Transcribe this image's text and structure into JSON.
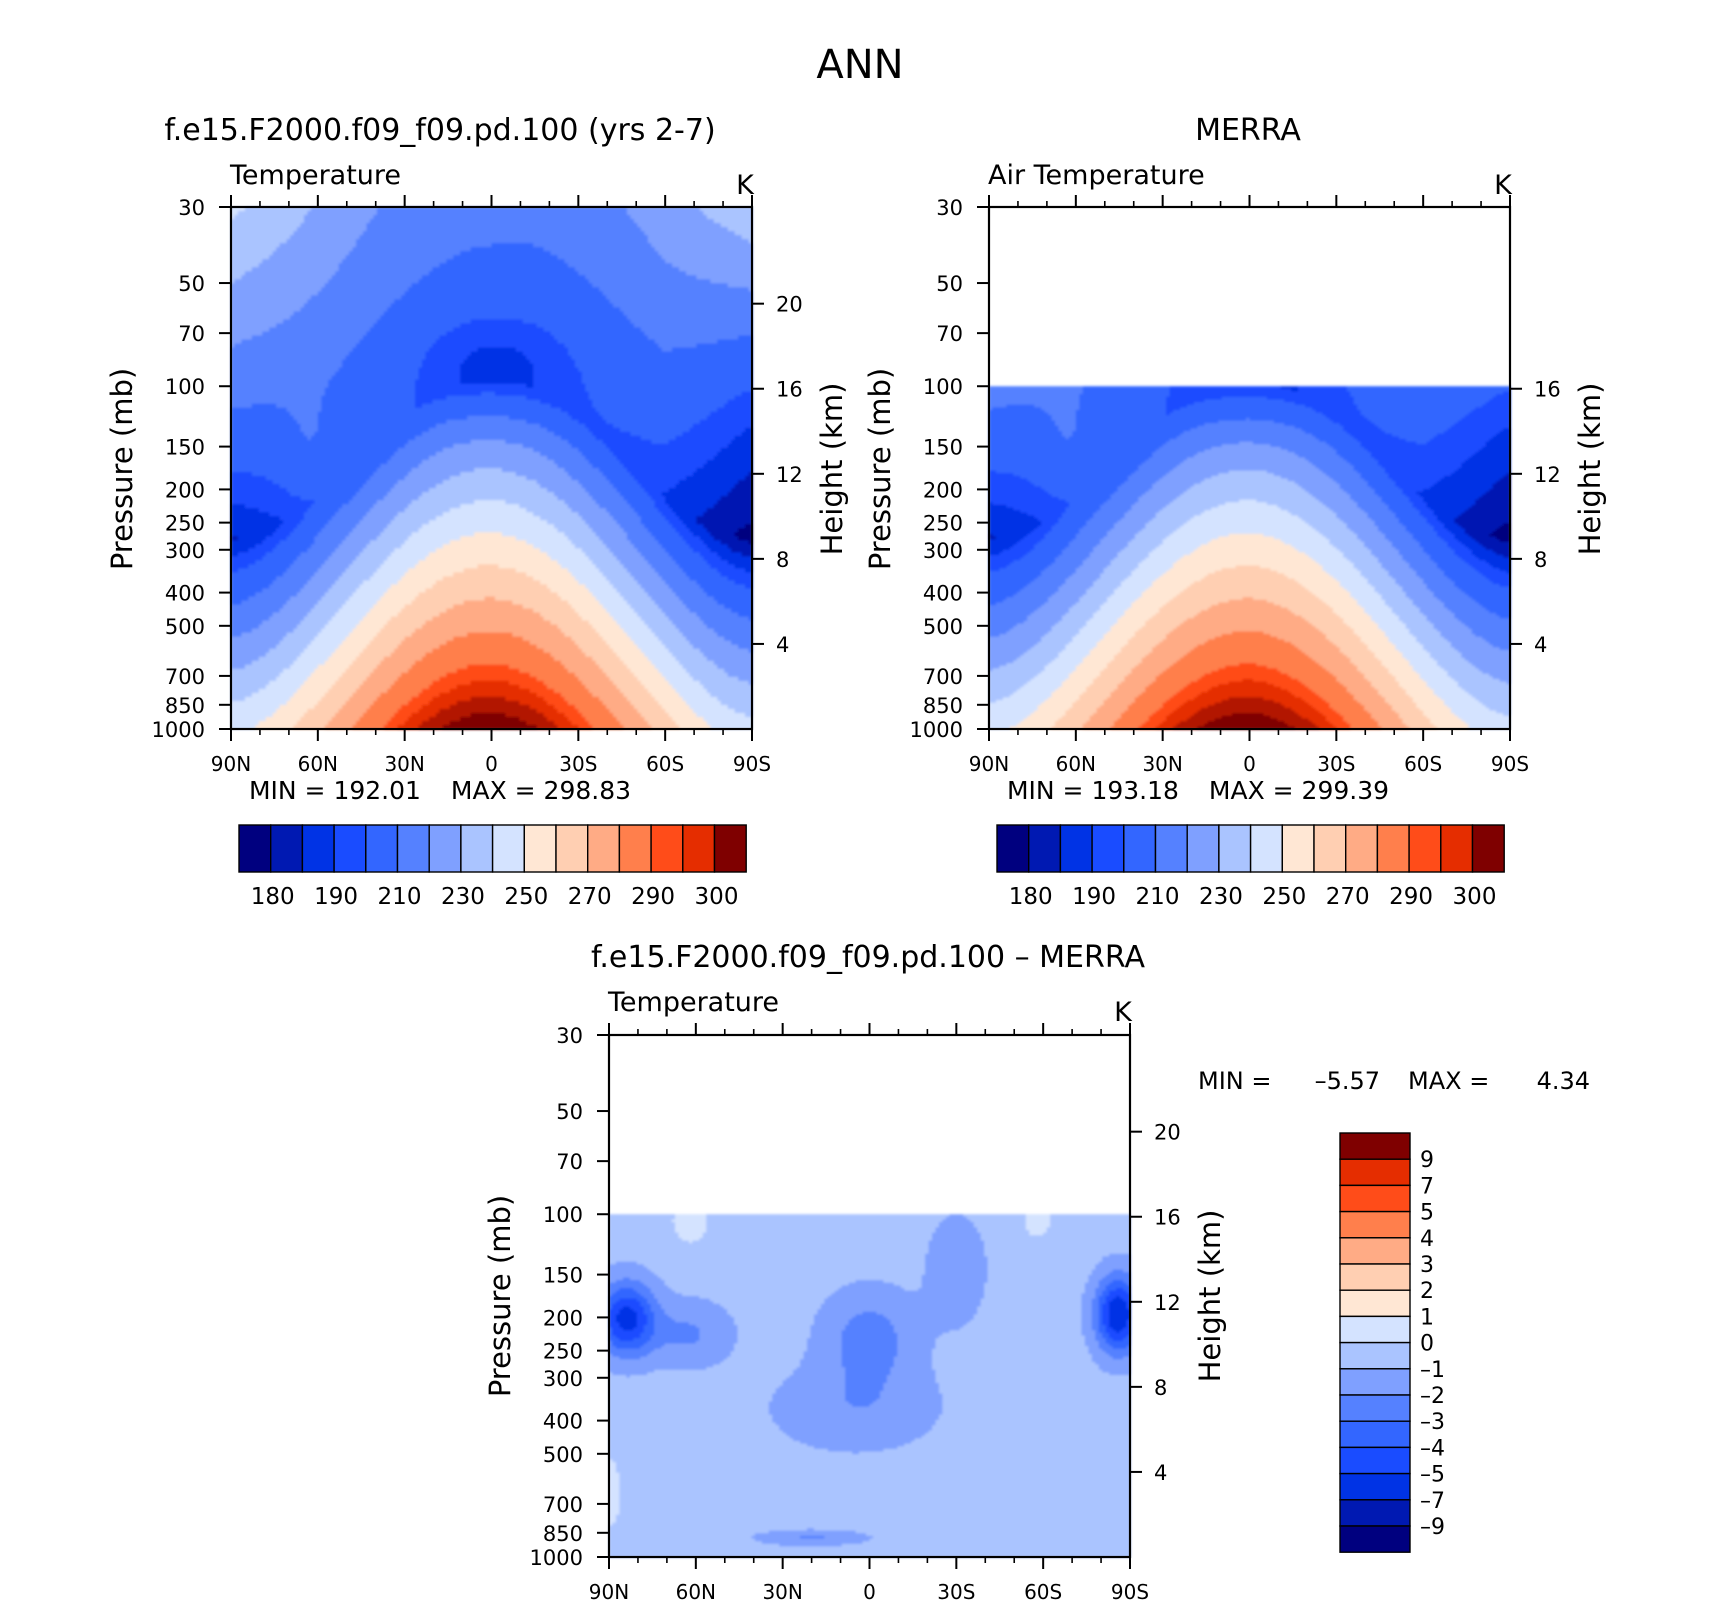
{
  "figure": {
    "title": "ANN"
  },
  "shared": {
    "lat_ticks": [
      "90N",
      "60N",
      "30N",
      "0",
      "30S",
      "60S",
      "90S"
    ],
    "pressure_ticks": [
      30,
      50,
      70,
      100,
      150,
      200,
      250,
      300,
      400,
      500,
      700,
      850,
      1000
    ],
    "pressure_label": "Pressure (mb)",
    "height_label": "Height (km)",
    "units": "K"
  },
  "colors": {
    "abs_fills": [
      "#00007f",
      "#0019b2",
      "#0033e5",
      "#1a4cff",
      "#3366ff",
      "#5581ff",
      "#7fa0ff",
      "#aac4ff",
      "#d4e3ff",
      "#ffe7d4",
      "#ffcfb2",
      "#ffab85",
      "#ff7f4c",
      "#ff4c19",
      "#e52d00",
      "#b21900",
      "#7f0000"
    ],
    "diff_fills": [
      "#00007f",
      "#0019b2",
      "#0033e5",
      "#1a4cff",
      "#3366ff",
      "#5581ff",
      "#7fa0ff",
      "#aac4ff",
      "#d4e3ff",
      "#ffe7d4",
      "#ffcfb2",
      "#ffab85",
      "#ff7f4c",
      "#ff4c19",
      "#e52d00",
      "#b21900",
      "#7f0000"
    ]
  },
  "chart_data": [
    {
      "type": "heatmap",
      "id": "model",
      "title": "f.e15.F2000.f09_f09.pd.100 (yrs 2-7)",
      "left_label": "Temperature",
      "units": "K",
      "x": [
        "90N",
        "60N",
        "30N",
        "0",
        "30S",
        "60S",
        "90S"
      ],
      "xlim": [
        -90,
        90
      ],
      "ylim": [
        1000,
        30
      ],
      "yscale": "log",
      "height_ticks_km": [
        4,
        8,
        12,
        16,
        20
      ],
      "min_label": "MIN = 192.01",
      "max_label": "MAX = 298.83",
      "min": 192.01,
      "max": 298.83,
      "colorbar_labels": [
        "180",
        "190",
        "210",
        "230",
        "250",
        "270",
        "290",
        "300"
      ],
      "levels": [
        175,
        180,
        185,
        190,
        200,
        210,
        220,
        230,
        240,
        250,
        260,
        270,
        280,
        285,
        290,
        295,
        300
      ]
    },
    {
      "type": "heatmap",
      "id": "obs",
      "title": "MERRA",
      "left_label": "Air Temperature",
      "units": "K",
      "x": [
        "90N",
        "60N",
        "30N",
        "0",
        "30S",
        "60S",
        "90S"
      ],
      "xlim": [
        -90,
        90
      ],
      "ylim": [
        1000,
        30
      ],
      "yscale": "log",
      "data_top_mb": 100,
      "height_ticks_km": [
        4,
        8,
        12,
        16
      ],
      "min_label": "MIN = 193.18",
      "max_label": "MAX = 299.39",
      "min": 193.18,
      "max": 299.39,
      "colorbar_labels": [
        "180",
        "190",
        "210",
        "230",
        "250",
        "270",
        "290",
        "300"
      ],
      "levels": [
        175,
        180,
        185,
        190,
        200,
        210,
        220,
        230,
        240,
        250,
        260,
        270,
        280,
        285,
        290,
        295,
        300
      ]
    },
    {
      "type": "heatmap",
      "id": "diff",
      "title": "f.e15.F2000.f09_f09.pd.100 – MERRA",
      "left_label": "Temperature",
      "units": "K",
      "x": [
        "90N",
        "60N",
        "30N",
        "0",
        "30S",
        "60S",
        "90S"
      ],
      "xlim": [
        -90,
        90
      ],
      "ylim": [
        1000,
        30
      ],
      "yscale": "log",
      "data_top_mb": 100,
      "height_ticks_km": [
        4,
        8,
        12,
        16,
        20
      ],
      "min_label": "MIN =",
      "min_value": "–5.57",
      "max_label": "MAX =",
      "max_value": "4.34",
      "min": -5.57,
      "max": 4.34,
      "colorbar_labels": [
        "9",
        "7",
        "5",
        "4",
        "3",
        "2",
        "1",
        "0",
        "–1",
        "–2",
        "–3",
        "–4",
        "–5",
        "–7",
        "–9"
      ],
      "levels": [
        -9,
        -7,
        -5,
        -4,
        -3,
        -2,
        -1,
        0,
        1,
        2,
        3,
        4,
        5,
        7,
        9
      ]
    }
  ]
}
